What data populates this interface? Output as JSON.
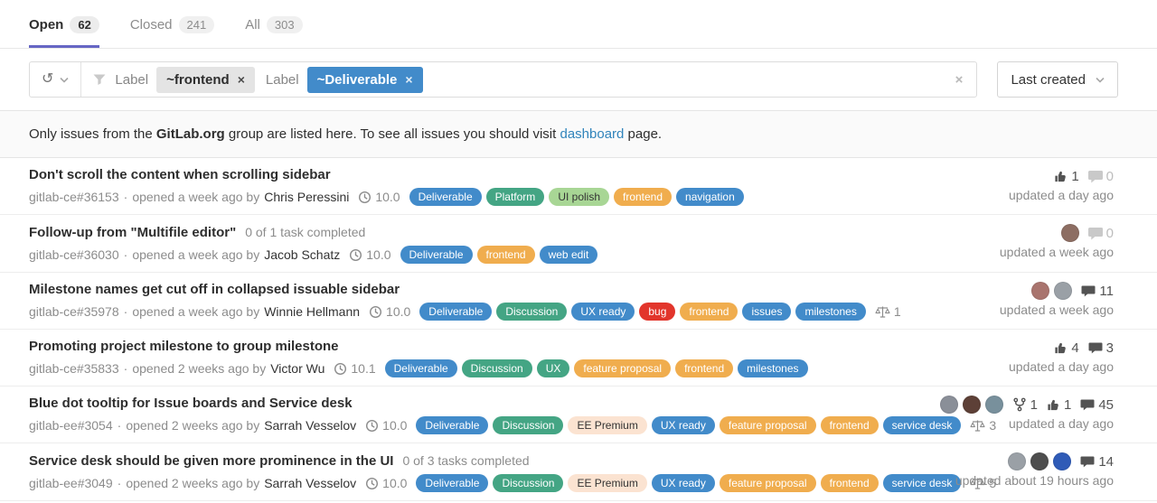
{
  "ui": {
    "dot": "·",
    "close_glyph": "×",
    "history_glyph": "↺"
  },
  "colors": {
    "accent_tab": "#6666c4",
    "link": "#3084bb"
  },
  "tabs": [
    {
      "label": "Open",
      "count": "62",
      "active": true
    },
    {
      "label": "Closed",
      "count": "241",
      "active": false
    },
    {
      "label": "All",
      "count": "303",
      "active": false
    }
  ],
  "filter": {
    "tokens": [
      {
        "name": "Label",
        "value": "~frontend",
        "bg": "#e4e4e4",
        "color": "#2e2e2e"
      },
      {
        "name": "Label",
        "value": "~Deliverable",
        "bg": "#428bca",
        "color": "#ffffff"
      }
    ],
    "sort_label": "Last created"
  },
  "banner": {
    "text_before_group": "Only issues from the ",
    "group_name": "GitLab.org",
    "text_middle": " group are listed here. To see all issues you should visit ",
    "link_text": "dashboard",
    "text_after": " page."
  },
  "issues": [
    {
      "title": "Don't scroll the content when scrolling sidebar",
      "tasks": null,
      "ref": "gitlab-ce#36153",
      "opened": "opened a week ago by",
      "author": "Chris Peressini",
      "milestone": "10.0",
      "labels": [
        {
          "text": "Deliverable",
          "bg": "#428bca",
          "fg": "#ffffff"
        },
        {
          "text": "Platform",
          "bg": "#44a584",
          "fg": "#ffffff"
        },
        {
          "text": "UI polish",
          "bg": "#a8d695",
          "fg": "#333333"
        },
        {
          "text": "frontend",
          "bg": "#f0ad4e",
          "fg": "#ffffff"
        },
        {
          "text": "navigation",
          "bg": "#428bca",
          "fg": "#ffffff"
        }
      ],
      "weight": null,
      "avatars": [],
      "mr": null,
      "upvotes": "1",
      "comments": "0",
      "comments_muted": true,
      "updated": "updated a day ago"
    },
    {
      "title": "Follow-up from \"Multifile editor\"",
      "tasks": "0 of 1 task completed",
      "ref": "gitlab-ce#36030",
      "opened": "opened a week ago by",
      "author": "Jacob Schatz",
      "milestone": "10.0",
      "labels": [
        {
          "text": "Deliverable",
          "bg": "#428bca",
          "fg": "#ffffff"
        },
        {
          "text": "frontend",
          "bg": "#f0ad4e",
          "fg": "#ffffff"
        },
        {
          "text": "web edit",
          "bg": "#428bca",
          "fg": "#ffffff"
        }
      ],
      "weight": null,
      "avatars": [
        "#8d6e63"
      ],
      "mr": null,
      "upvotes": null,
      "comments": "0",
      "comments_muted": true,
      "updated": "updated a week ago"
    },
    {
      "title": "Milestone names get cut off in collapsed issuable sidebar",
      "tasks": null,
      "ref": "gitlab-ce#35978",
      "opened": "opened a week ago by",
      "author": "Winnie Hellmann",
      "milestone": "10.0",
      "labels": [
        {
          "text": "Deliverable",
          "bg": "#428bca",
          "fg": "#ffffff"
        },
        {
          "text": "Discussion",
          "bg": "#44a584",
          "fg": "#ffffff"
        },
        {
          "text": "UX ready",
          "bg": "#428bca",
          "fg": "#ffffff"
        },
        {
          "text": "bug",
          "bg": "#e2352b",
          "fg": "#ffffff"
        },
        {
          "text": "frontend",
          "bg": "#f0ad4e",
          "fg": "#ffffff"
        },
        {
          "text": "issues",
          "bg": "#428bca",
          "fg": "#ffffff"
        },
        {
          "text": "milestones",
          "bg": "#428bca",
          "fg": "#ffffff"
        }
      ],
      "weight": "1",
      "avatars": [
        "#a9746e",
        "#9aa0a6"
      ],
      "mr": null,
      "upvotes": null,
      "comments": "11",
      "comments_muted": false,
      "updated": "updated a week ago"
    },
    {
      "title": "Promoting project milestone to group milestone",
      "tasks": null,
      "ref": "gitlab-ce#35833",
      "opened": "opened 2 weeks ago by",
      "author": "Victor Wu",
      "milestone": "10.1",
      "labels": [
        {
          "text": "Deliverable",
          "bg": "#428bca",
          "fg": "#ffffff"
        },
        {
          "text": "Discussion",
          "bg": "#44a584",
          "fg": "#ffffff"
        },
        {
          "text": "UX",
          "bg": "#44a584",
          "fg": "#ffffff"
        },
        {
          "text": "feature proposal",
          "bg": "#f0ad4e",
          "fg": "#ffffff"
        },
        {
          "text": "frontend",
          "bg": "#f0ad4e",
          "fg": "#ffffff"
        },
        {
          "text": "milestones",
          "bg": "#428bca",
          "fg": "#ffffff"
        }
      ],
      "weight": null,
      "avatars": [],
      "mr": null,
      "upvotes": "4",
      "comments": "3",
      "comments_muted": false,
      "updated": "updated a day ago"
    },
    {
      "title": "Blue dot tooltip for Issue boards and Service desk",
      "tasks": null,
      "ref": "gitlab-ee#3054",
      "opened": "opened 2 weeks ago by",
      "author": "Sarrah Vesselov",
      "milestone": "10.0",
      "labels": [
        {
          "text": "Deliverable",
          "bg": "#428bca",
          "fg": "#ffffff"
        },
        {
          "text": "Discussion",
          "bg": "#44a584",
          "fg": "#ffffff"
        },
        {
          "text": "EE Premium",
          "bg": "#fbe3d1",
          "fg": "#333333"
        },
        {
          "text": "UX ready",
          "bg": "#428bca",
          "fg": "#ffffff"
        },
        {
          "text": "feature proposal",
          "bg": "#f0ad4e",
          "fg": "#ffffff"
        },
        {
          "text": "frontend",
          "bg": "#f0ad4e",
          "fg": "#ffffff"
        },
        {
          "text": "service desk",
          "bg": "#428bca",
          "fg": "#ffffff"
        }
      ],
      "weight": "3",
      "avatars": [
        "#8a8f98",
        "#5d4037",
        "#78909c"
      ],
      "mr": "1",
      "upvotes": "1",
      "comments": "45",
      "comments_muted": false,
      "updated": "updated a day ago"
    },
    {
      "title": "Service desk should be given more prominence in the UI",
      "tasks": "0 of 3 tasks completed",
      "ref": "gitlab-ee#3049",
      "opened": "opened 2 weeks ago by",
      "author": "Sarrah Vesselov",
      "milestone": "10.0",
      "labels": [
        {
          "text": "Deliverable",
          "bg": "#428bca",
          "fg": "#ffffff"
        },
        {
          "text": "Discussion",
          "bg": "#44a584",
          "fg": "#ffffff"
        },
        {
          "text": "EE Premium",
          "bg": "#fbe3d1",
          "fg": "#333333"
        },
        {
          "text": "UX ready",
          "bg": "#428bca",
          "fg": "#ffffff"
        },
        {
          "text": "feature proposal",
          "bg": "#f0ad4e",
          "fg": "#ffffff"
        },
        {
          "text": "frontend",
          "bg": "#f0ad4e",
          "fg": "#ffffff"
        },
        {
          "text": "service desk",
          "bg": "#428bca",
          "fg": "#ffffff"
        }
      ],
      "weight": "5",
      "avatars": [
        "#9aa0a6",
        "#4e4e4e",
        "#2f5bb7"
      ],
      "mr": null,
      "upvotes": null,
      "comments": "14",
      "comments_muted": false,
      "updated": "updated about 19 hours ago"
    }
  ]
}
